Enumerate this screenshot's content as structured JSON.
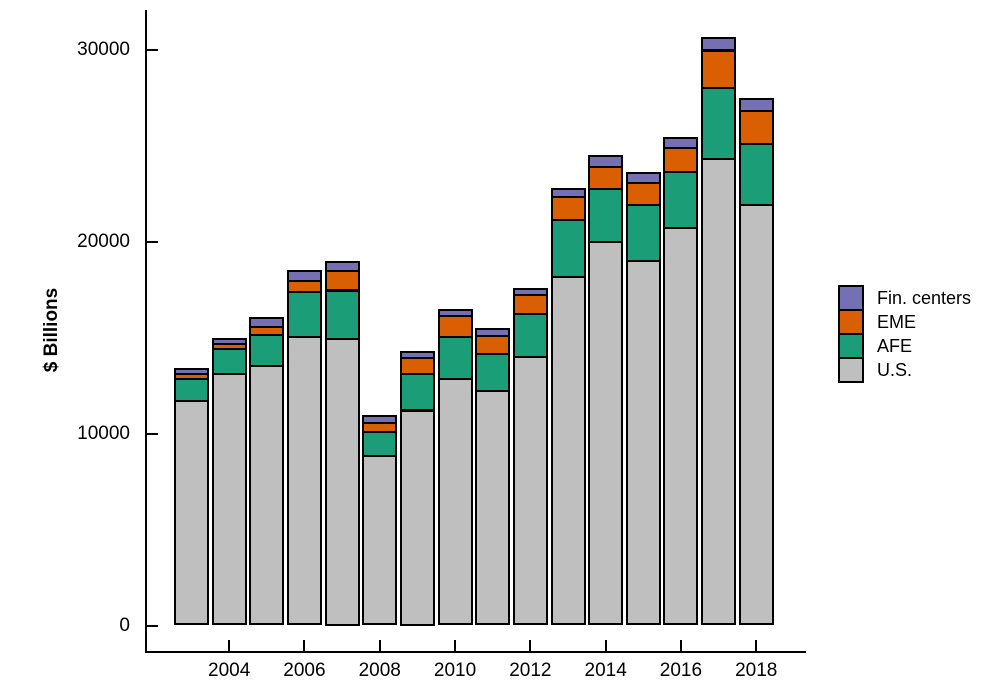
{
  "chart_data": {
    "type": "bar",
    "stacked": true,
    "ylabel": "$ Billions",
    "categories": [
      2003,
      2004,
      2005,
      2006,
      2007,
      2008,
      2009,
      2010,
      2011,
      2012,
      2013,
      2014,
      2015,
      2016,
      2017,
      2018
    ],
    "x_tick_labels": [
      "2004",
      "2006",
      "2008",
      "2010",
      "2012",
      "2014",
      "2016",
      "2018"
    ],
    "y_tick_labels": [
      "0",
      "10000",
      "20000",
      "30000"
    ],
    "y_ticks": [
      0,
      10000,
      20000,
      30000
    ],
    "ylim": [
      0,
      31000
    ],
    "grid": false,
    "legend_position": "right",
    "series": [
      {
        "name": "U.S.",
        "color": "#bfbfbf",
        "values": [
          11750,
          13150,
          13550,
          15100,
          15000,
          8900,
          11250,
          12900,
          12250,
          14050,
          18200,
          20050,
          19050,
          20750,
          24350,
          21950
        ]
      },
      {
        "name": "AFE",
        "color": "#1b9e77",
        "values": [
          1150,
          1300,
          1650,
          2300,
          2500,
          1250,
          1900,
          2200,
          1950,
          2250,
          2950,
          2750,
          2900,
          2900,
          3700,
          3200
        ]
      },
      {
        "name": "EME",
        "color": "#d95f02",
        "values": [
          250,
          250,
          400,
          600,
          1000,
          450,
          850,
          1050,
          950,
          950,
          1200,
          1150,
          1150,
          1250,
          1950,
          1700
        ]
      },
      {
        "name": "Fin. centers",
        "color": "#7570b3",
        "values": [
          250,
          300,
          450,
          500,
          500,
          350,
          300,
          350,
          350,
          350,
          450,
          550,
          500,
          550,
          650,
          600
        ]
      }
    ],
    "totals": [
      13400,
      15000,
      16050,
      18500,
      19000,
      10950,
      14300,
      16500,
      15500,
      17600,
      22800,
      24500,
      23600,
      25450,
      30650,
      27450
    ],
    "legend_order_top_to_bottom": [
      "Fin. centers",
      "EME",
      "AFE",
      "U.S."
    ]
  }
}
